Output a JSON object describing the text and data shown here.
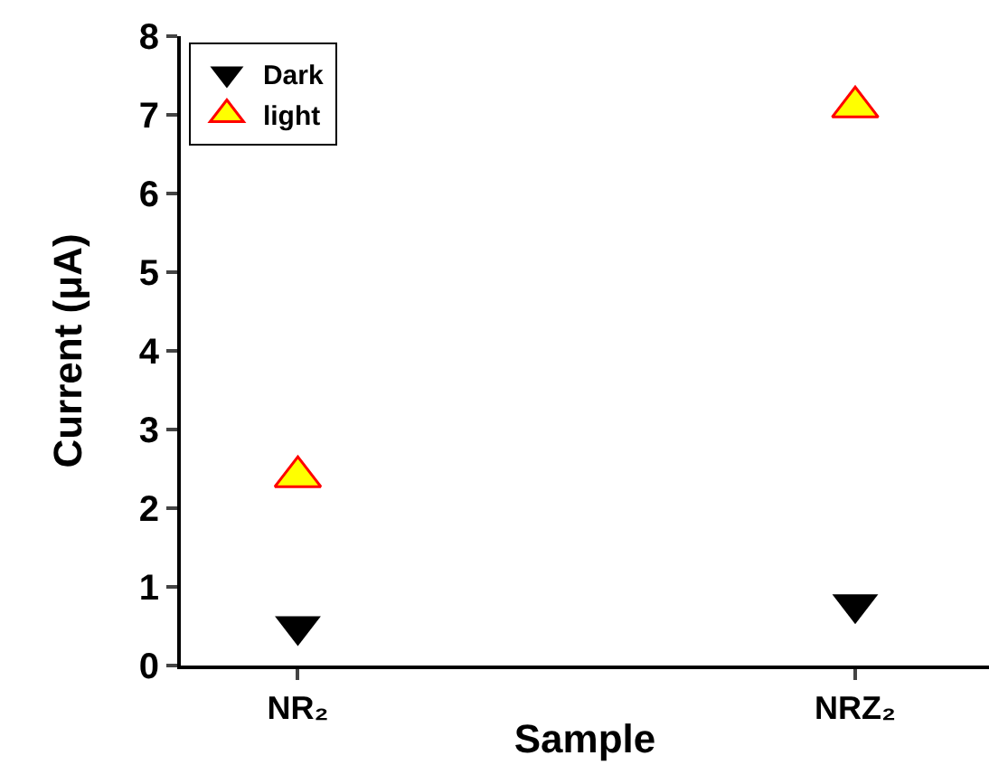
{
  "chart_data": {
    "type": "scatter",
    "xlabel": "Sample",
    "ylabel": "Current (μA)",
    "categories": [
      "NR₂",
      "NRZ₂"
    ],
    "series": [
      {
        "name": "Dark",
        "color": "#000000",
        "marker": "triangle-down",
        "values": [
          0.5,
          0.78
        ]
      },
      {
        "name": "light",
        "color": "#ffff00",
        "marker": "triangle",
        "values": [
          2.4,
          7.1
        ]
      }
    ],
    "ylim": [
      0,
      8
    ],
    "yticks": [
      0,
      1,
      2,
      3,
      4,
      5,
      6,
      7,
      8
    ],
    "grid": false,
    "legend": "top left"
  }
}
